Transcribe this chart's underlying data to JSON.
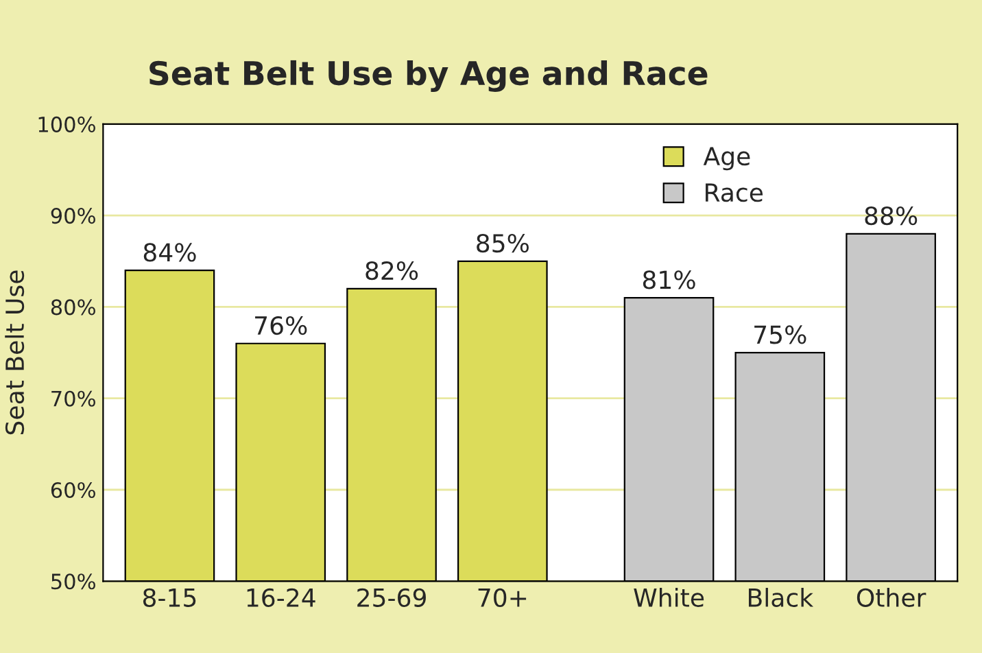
{
  "chart_data": {
    "type": "bar",
    "title": "Seat Belt Use by Age and Race",
    "ylabel": "Seat Belt Use",
    "categories": [
      "8-15",
      "16-24",
      "25-69",
      "70+",
      "White",
      "Black",
      "Other"
    ],
    "series": [
      {
        "name": "Age",
        "color": "#dcdc5a",
        "values": [
          84,
          76,
          82,
          85,
          null,
          null,
          null
        ],
        "value_labels": [
          "84%",
          "76%",
          "82%",
          "85%",
          null,
          null,
          null
        ]
      },
      {
        "name": "Race",
        "color": "#c8c8c8",
        "values": [
          null,
          null,
          null,
          null,
          81,
          75,
          88
        ],
        "value_labels": [
          null,
          null,
          null,
          null,
          "81%",
          "75%",
          "88%"
        ]
      }
    ],
    "ylim": [
      50,
      100
    ],
    "yticks": [
      {
        "value": 50,
        "label": "50%"
      },
      {
        "value": 60,
        "label": "60%"
      },
      {
        "value": 70,
        "label": "70%"
      },
      {
        "value": 80,
        "label": "80%"
      },
      {
        "value": 90,
        "label": "90%"
      },
      {
        "value": 100,
        "label": "100%"
      }
    ],
    "grid": "y",
    "legend": "top right"
  }
}
